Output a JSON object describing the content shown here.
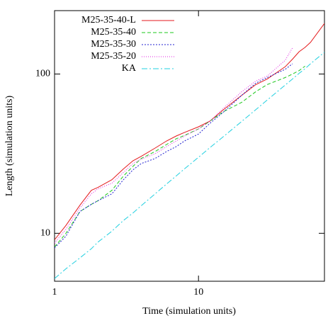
{
  "chart_data": {
    "type": "line",
    "log_x": true,
    "log_y": true,
    "xlabel": "Time (simulation units)",
    "ylabel": "Length (simulation units)",
    "xlim": [
      1,
      75
    ],
    "ylim": [
      5,
      250
    ],
    "xticks": [
      1,
      10
    ],
    "yticks": [
      10,
      100
    ],
    "legend": "top-left",
    "x": [
      1,
      1.2,
      1.5,
      1.8,
      2,
      2.5,
      3,
      3.5,
      4,
      5,
      6,
      7,
      8,
      10,
      12,
      15,
      20,
      25,
      30,
      40,
      45,
      50,
      55,
      60,
      75
    ],
    "series": [
      {
        "name": "M25-35-40-L",
        "color": "#e41a1c",
        "dash": "none",
        "values": [
          9.1,
          11.2,
          15,
          18.6,
          19.4,
          21.7,
          25.3,
          28.5,
          30.4,
          34.3,
          38,
          40.8,
          43,
          46.6,
          50.6,
          60,
          73.6,
          85.8,
          93,
          111,
          124,
          138,
          147,
          158,
          208
        ]
      },
      {
        "name": "M25-35-40",
        "color": "#1ec81e",
        "dash": "5,3",
        "values": [
          8.2,
          10,
          13.7,
          15.2,
          16,
          18.6,
          22.8,
          26.3,
          29.5,
          32.6,
          36.1,
          39.2,
          41.2,
          45.2,
          50.6,
          58.2,
          66.5,
          77.5,
          85.8,
          95,
          100,
          105,
          112,
          null,
          null
        ]
      },
      {
        "name": "M25-35-30",
        "color": "#2020d0",
        "dash": "2,2",
        "values": [
          8.1,
          9.6,
          13.7,
          15.2,
          16,
          17.7,
          21.6,
          25,
          27.4,
          29.5,
          32.6,
          35,
          38,
          42,
          49,
          58,
          73.6,
          87.6,
          95,
          107,
          116,
          null,
          null,
          null,
          null
        ]
      },
      {
        "name": "M25-35-20",
        "color": "#e020e0",
        "dash": "1,2",
        "values": [
          8.7,
          10.6,
          14.4,
          17.7,
          19,
          20.6,
          24,
          27.4,
          29.2,
          31.6,
          35,
          38,
          40.8,
          45.2,
          50.6,
          61.3,
          77.5,
          90.3,
          96.9,
          122,
          146,
          null,
          null,
          null,
          null
        ]
      },
      {
        "name": "KA",
        "color": "#20d0e0",
        "dash": "8,3,2,3",
        "values": [
          5.2,
          5.99,
          7,
          8,
          8.8,
          10.3,
          12,
          13.4,
          14.9,
          17.7,
          20.4,
          22.9,
          25.4,
          30,
          34.5,
          40.7,
          50.5,
          59.7,
          68.6,
          85.2,
          93.1,
          101,
          108,
          116,
          137
        ]
      }
    ]
  }
}
